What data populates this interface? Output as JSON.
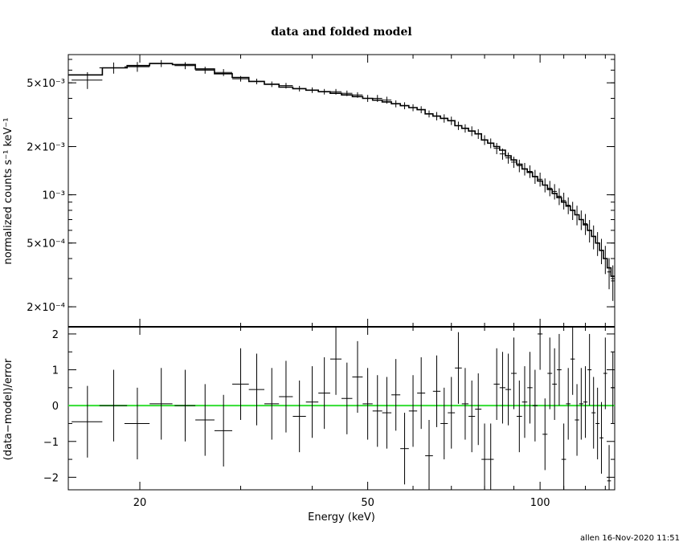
{
  "chart_data": [
    {
      "type": "line",
      "title": "data and folded model",
      "ylabel": "normalized counts s⁻¹ keV⁻¹",
      "xlabel": "",
      "xscale": "log",
      "yscale": "log",
      "xlim": [
        15,
        135
      ],
      "ylim": [
        0.00015,
        0.0075
      ],
      "yticks": [
        {
          "value": 0.005,
          "label": "5×10⁻³"
        },
        {
          "value": 0.002,
          "label": "2×10⁻³"
        },
        {
          "value": 0.001,
          "label": "10⁻³"
        },
        {
          "value": 0.0005,
          "label": "5×10⁻⁴"
        },
        {
          "value": 0.0002,
          "label": "2×10⁻⁴"
        }
      ],
      "series": [
        {
          "kind": "data-crosses",
          "x": [
            16.2,
            18.0,
            19.8,
            21.8,
            24.0,
            26.0,
            28.0,
            30.0,
            32.0,
            34.0,
            36.0,
            38.0,
            40.0,
            42.0,
            44.0,
            46.0,
            48.0,
            50.0,
            52.0,
            54.0,
            56.0,
            58.0,
            60.0,
            62.0,
            64.0,
            66.0,
            68.0,
            70.0,
            72.0,
            74.0,
            76.0,
            78.0,
            80.0,
            82.0,
            84.0,
            86.0,
            88.0,
            90.0,
            92.0,
            94.0,
            96.0,
            98.0,
            100.0,
            102.0,
            104.0,
            106.0,
            108.0,
            110.0,
            112.0,
            114.0,
            116.0,
            118.0,
            120.0,
            122.0,
            124.0,
            126.0,
            128.0,
            130.0,
            132.0,
            134.0
          ],
          "y": [
            0.0052,
            0.0062,
            0.0063,
            0.0066,
            0.0064,
            0.006,
            0.0058,
            0.0053,
            0.0051,
            0.0049,
            0.0048,
            0.0046,
            0.0045,
            0.0044,
            0.0044,
            0.0043,
            0.0042,
            0.004,
            0.004,
            0.0039,
            0.0037,
            0.0036,
            0.0035,
            0.0034,
            0.0032,
            0.0031,
            0.003,
            0.0029,
            0.0027,
            0.0026,
            0.0025,
            0.0024,
            0.0022,
            0.0021,
            0.00195,
            0.0018,
            0.0017,
            0.0016,
            0.00152,
            0.00145,
            0.0014,
            0.0013,
            0.00125,
            0.00115,
            0.0011,
            0.00105,
            0.00098,
            0.00092,
            0.00086,
            0.0008,
            0.00075,
            0.0007,
            0.00066,
            0.0006,
            0.00055,
            0.0005,
            0.00045,
            0.0004,
            0.00033,
            0.00029
          ],
          "xerr": [
            1.0,
            1.0,
            1.0,
            1.0,
            1.0,
            1.0,
            1.0,
            1.0,
            1.0,
            1.0,
            1.0,
            1.0,
            1.0,
            1.0,
            1.0,
            1.0,
            1.0,
            1.0,
            1.0,
            1.0,
            1.0,
            1.0,
            1.0,
            1.0,
            1.0,
            1.0,
            1.0,
            1.0,
            1.0,
            1.0,
            1.0,
            1.0,
            1.0,
            1.0,
            1.0,
            1.0,
            1.0,
            1.0,
            1.0,
            1.0,
            1.0,
            1.0,
            1.0,
            1.0,
            1.0,
            1.0,
            1.0,
            1.0,
            1.0,
            1.0,
            1.0,
            1.0,
            1.0,
            1.0,
            1.0,
            1.0,
            1.0,
            1.0,
            1.0,
            1.0
          ],
          "yerr_frac": [
            0.12,
            0.08,
            0.07,
            0.05,
            0.05,
            0.05,
            0.05,
            0.04,
            0.04,
            0.04,
            0.04,
            0.04,
            0.04,
            0.04,
            0.04,
            0.04,
            0.04,
            0.05,
            0.05,
            0.05,
            0.05,
            0.05,
            0.05,
            0.05,
            0.05,
            0.06,
            0.06,
            0.06,
            0.06,
            0.06,
            0.07,
            0.07,
            0.07,
            0.07,
            0.08,
            0.08,
            0.08,
            0.08,
            0.09,
            0.09,
            0.09,
            0.1,
            0.1,
            0.1,
            0.11,
            0.11,
            0.12,
            0.12,
            0.12,
            0.13,
            0.14,
            0.14,
            0.15,
            0.16,
            0.17,
            0.17,
            0.18,
            0.2,
            0.22,
            0.25
          ]
        },
        {
          "kind": "model-step",
          "x": [
            15.0,
            17.2,
            19.0,
            20.8,
            22.8,
            25.0,
            27.0,
            29.0,
            31.0,
            33.0,
            35.0,
            37.0,
            39.0,
            41.0,
            43.0,
            45.0,
            47.0,
            49.0,
            51.0,
            53.0,
            55.0,
            57.0,
            59.0,
            61.0,
            63.0,
            65.0,
            67.0,
            69.0,
            71.0,
            73.0,
            75.0,
            77.0,
            79.0,
            81.0,
            83.0,
            85.0,
            87.0,
            89.0,
            91.0,
            93.0,
            95.0,
            97.0,
            99.0,
            101.0,
            103.0,
            105.0,
            107.0,
            109.0,
            111.0,
            113.0,
            115.0,
            117.0,
            119.0,
            121.0,
            123.0,
            125.0,
            127.0,
            129.0,
            131.0,
            133.0,
            135.0
          ],
          "y": [
            0.0056,
            0.0062,
            0.0064,
            0.0066,
            0.0065,
            0.0061,
            0.0057,
            0.0054,
            0.0051,
            0.0049,
            0.0047,
            0.0046,
            0.0045,
            0.0044,
            0.0043,
            0.0042,
            0.0041,
            0.004,
            0.0039,
            0.0038,
            0.0037,
            0.0036,
            0.0035,
            0.0034,
            0.0032,
            0.0031,
            0.003,
            0.0029,
            0.0027,
            0.0026,
            0.0025,
            0.0024,
            0.0022,
            0.0021,
            0.002,
            0.0019,
            0.00175,
            0.00165,
            0.00155,
            0.00145,
            0.00138,
            0.0013,
            0.00122,
            0.00115,
            0.00108,
            0.00102,
            0.00096,
            0.0009,
            0.00085,
            0.0008,
            0.00075,
            0.0007,
            0.00065,
            0.0006,
            0.00055,
            0.0005,
            0.00045,
            0.0004,
            0.00035,
            0.00031,
            0.00028
          ]
        }
      ]
    },
    {
      "type": "scatter",
      "title": "",
      "ylabel": "(data−model)/error",
      "xlabel": "Energy (keV)",
      "xscale": "log",
      "xlim": [
        15,
        135
      ],
      "ylim": [
        -2.35,
        2.2
      ],
      "yticks": [
        {
          "value": 2,
          "label": "2"
        },
        {
          "value": 1,
          "label": "1"
        },
        {
          "value": 0,
          "label": "0"
        },
        {
          "value": -1,
          "label": "−1"
        },
        {
          "value": -2,
          "label": "−2"
        }
      ],
      "xticks": [
        {
          "value": 20,
          "label": "20"
        },
        {
          "value": 50,
          "label": "50"
        },
        {
          "value": 100,
          "label": "100"
        }
      ],
      "zero_line_color": "#33dd33",
      "series": [
        {
          "kind": "residual-crosses",
          "x": [
            16.2,
            18.0,
            19.8,
            21.8,
            24.0,
            26.0,
            28.0,
            30.0,
            32.0,
            34.0,
            36.0,
            38.0,
            40.0,
            42.0,
            44.0,
            46.0,
            48.0,
            50.0,
            52.0,
            54.0,
            56.0,
            58.0,
            60.0,
            62.0,
            64.0,
            66.0,
            68.0,
            70.0,
            72.0,
            74.0,
            76.0,
            78.0,
            80.0,
            82.0,
            84.0,
            86.0,
            88.0,
            90.0,
            92.0,
            94.0,
            96.0,
            98.0,
            100.0,
            102.0,
            104.0,
            106.0,
            108.0,
            110.0,
            112.0,
            114.0,
            116.0,
            118.0,
            120.0,
            122.0,
            124.0,
            126.0,
            128.0,
            130.0,
            132.0,
            134.0
          ],
          "y": [
            -0.45,
            0.0,
            -0.5,
            0.05,
            0.0,
            -0.4,
            -0.7,
            0.6,
            0.45,
            0.05,
            0.25,
            -0.3,
            0.1,
            0.35,
            1.3,
            0.2,
            0.8,
            0.05,
            -0.15,
            -0.2,
            0.3,
            -1.2,
            -0.15,
            0.35,
            -1.4,
            0.4,
            -0.5,
            -0.2,
            1.05,
            0.05,
            -0.3,
            -0.1,
            -1.5,
            -1.5,
            0.6,
            0.5,
            0.45,
            0.9,
            -0.3,
            0.1,
            0.5,
            0.0,
            2.0,
            -0.8,
            0.9,
            0.6,
            1.0,
            -1.5,
            0.05,
            1.3,
            -0.4,
            0.05,
            0.1,
            1.0,
            -0.2,
            -0.5,
            -0.9,
            0.9,
            -2.1,
            0.5
          ],
          "xerr": [
            1.0,
            1.0,
            1.0,
            1.0,
            1.0,
            1.0,
            1.0,
            1.0,
            1.0,
            1.0,
            1.0,
            1.0,
            1.0,
            1.0,
            1.0,
            1.0,
            1.0,
            1.0,
            1.0,
            1.0,
            1.0,
            1.0,
            1.0,
            1.0,
            1.0,
            1.0,
            1.0,
            1.0,
            1.0,
            1.0,
            1.0,
            1.0,
            1.0,
            1.0,
            1.0,
            1.0,
            1.0,
            1.0,
            1.0,
            1.0,
            1.0,
            1.0,
            1.0,
            1.0,
            1.0,
            1.0,
            1.0,
            1.0,
            1.0,
            1.0,
            1.0,
            1.0,
            1.0,
            1.0,
            1.0,
            1.0,
            1.0,
            1.0,
            1.0,
            1.0
          ],
          "yerr": [
            1,
            1,
            1,
            1,
            1,
            1,
            1,
            1,
            1,
            1,
            1,
            1,
            1,
            1,
            1,
            1,
            1,
            1,
            1,
            1,
            1,
            1,
            1,
            1,
            1,
            1,
            1,
            1,
            1,
            1,
            1,
            1,
            1,
            1,
            1,
            1,
            1,
            1,
            1,
            1,
            1,
            1,
            1,
            1,
            1,
            1,
            1,
            1,
            1,
            1,
            1,
            1,
            1,
            1,
            1,
            1,
            1,
            1,
            1,
            1
          ]
        }
      ]
    }
  ],
  "footer": "allen 16-Nov-2020 11:51"
}
